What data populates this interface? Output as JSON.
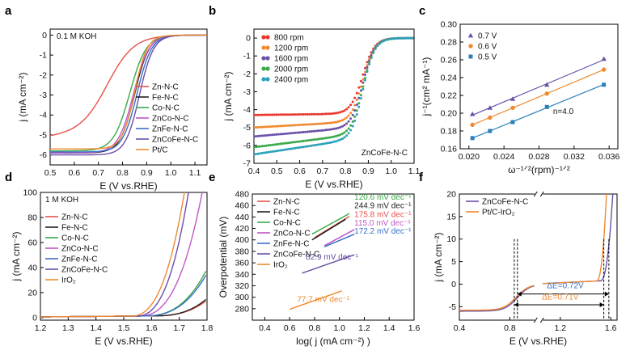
{
  "chart_data": [
    {
      "id": "a",
      "type": "line",
      "label": "a",
      "annotation": "0.1 M KOH",
      "xlabel": "E (V vs.RHE)",
      "ylabel": "j (mA cm⁻²)",
      "xlim": [
        0.5,
        1.15
      ],
      "ylim": [
        -6.5,
        0.3
      ],
      "xticks": [
        "0.5",
        "0.6",
        "0.7",
        "0.8",
        "0.9",
        "1.0",
        "1.1"
      ],
      "xtick_values": [
        0.5,
        0.6,
        0.7,
        0.8,
        0.9,
        1.0,
        1.1
      ],
      "yticks": [
        "0",
        "-1",
        "-2",
        "-3",
        "-4",
        "-5",
        "-6"
      ],
      "ytick_values": [
        0,
        -1,
        -2,
        -3,
        -4,
        -5,
        -6
      ],
      "series": [
        {
          "name": "Zn-N-C",
          "color": "#e8504a",
          "jl": -5.1,
          "e_half": 0.74,
          "slope": 0.055,
          "e_start": 0.5
        },
        {
          "name": "Fe-N-C",
          "color": "#222222",
          "jl": -5.9,
          "e_half": 0.85,
          "slope": 0.03,
          "e_start": 0.5
        },
        {
          "name": "Co-N-C",
          "color": "#3aa84a",
          "jl": -5.8,
          "e_half": 0.83,
          "slope": 0.034,
          "e_start": 0.5
        },
        {
          "name": "ZnCo-N-C",
          "color": "#c057c8",
          "jl": -5.9,
          "e_half": 0.845,
          "slope": 0.032,
          "e_start": 0.5
        },
        {
          "name": "ZnFe-N-C",
          "color": "#3a6fc8",
          "jl": -5.85,
          "e_half": 0.86,
          "slope": 0.03,
          "e_start": 0.5
        },
        {
          "name": "ZnCoFe-N-C",
          "color": "#6a4fa8",
          "jl": -6.0,
          "e_half": 0.87,
          "slope": 0.029,
          "e_start": 0.5
        },
        {
          "name": "Pt/C",
          "color": "#f08a30",
          "jl": -5.7,
          "e_half": 0.85,
          "slope": 0.026,
          "e_start": 0.5
        }
      ]
    },
    {
      "id": "b",
      "type": "scatter",
      "label": "b",
      "annotation": "ZnCoFe-N-C",
      "xlabel": "E (V vs.RHE)",
      "ylabel": "j (mA cm⁻²)",
      "xlim": [
        0.4,
        1.1
      ],
      "ylim": [
        -7,
        0.5
      ],
      "xticks": [
        "0.4",
        "0.5",
        "0.6",
        "0.7",
        "0.8",
        "0.9",
        "1.0",
        "1.1"
      ],
      "xtick_values": [
        0.4,
        0.5,
        0.6,
        0.7,
        0.8,
        0.9,
        1.0,
        1.1
      ],
      "yticks": [
        "0",
        "-1",
        "-2",
        "-3",
        "-4",
        "-5",
        "-6",
        "-7"
      ],
      "ytick_values": [
        0,
        -1,
        -2,
        -3,
        -4,
        -5,
        -6,
        -7
      ],
      "series": [
        {
          "name": "800 rpm",
          "color": "#e8372e",
          "jl": -4.3
        },
        {
          "name": "1200 rpm",
          "color": "#f08a30",
          "jl": -5.0
        },
        {
          "name": "1600 rpm",
          "color": "#6a4fa8",
          "jl": -5.5
        },
        {
          "name": "2000 rpm",
          "color": "#3aa84a",
          "jl": -6.1
        },
        {
          "name": "2400 rpm",
          "color": "#2aa0b8",
          "jl": -6.5
        }
      ]
    },
    {
      "id": "c",
      "type": "scatter",
      "label": "c",
      "annotation": "n=4.0",
      "xlabel": "ω⁻¹ᐟ²(rpm)⁻¹ᐟ²",
      "ylabel": "j⁻¹(cm² mA⁻¹)",
      "xlim": [
        0.019,
        0.037
      ],
      "ylim": [
        0.16,
        0.3
      ],
      "xticks": [
        "0.020",
        "0.024",
        "0.028",
        "0.032",
        "0.036"
      ],
      "xtick_values": [
        0.02,
        0.024,
        0.028,
        0.032,
        0.036
      ],
      "yticks": [
        "0.16",
        "0.18",
        "0.20",
        "0.22",
        "0.24",
        "0.26",
        "0.28",
        "0.30"
      ],
      "ytick_values": [
        0.16,
        0.18,
        0.2,
        0.22,
        0.24,
        0.26,
        0.28,
        0.3
      ],
      "x": [
        0.0204,
        0.0224,
        0.025,
        0.0289,
        0.0354
      ],
      "series": [
        {
          "name": "0.7 V",
          "color": "#6a4fa8",
          "marker": "triangle",
          "values": [
            0.199,
            0.206,
            0.216,
            0.232,
            0.261
          ]
        },
        {
          "name": "0.6 V",
          "color": "#f08a30",
          "marker": "circle",
          "values": [
            0.187,
            0.195,
            0.206,
            0.222,
            0.249
          ]
        },
        {
          "name": "0.5 V",
          "color": "#2a80b8",
          "marker": "square",
          "values": [
            0.172,
            0.18,
            0.19,
            0.207,
            0.232
          ]
        }
      ]
    },
    {
      "id": "d",
      "type": "line",
      "label": "d",
      "annotation": "1 M KOH",
      "xlabel": "E (V vs.RHE)",
      "ylabel": "j (mA cm⁻²)",
      "xlim": [
        1.2,
        1.8
      ],
      "ylim": [
        -2,
        100
      ],
      "xticks": [
        "1.2",
        "1.3",
        "1.4",
        "1.5",
        "1.6",
        "1.7",
        "1.8"
      ],
      "xtick_values": [
        1.2,
        1.3,
        1.4,
        1.5,
        1.6,
        1.7,
        1.8
      ],
      "yticks": [
        "0",
        "20",
        "40",
        "60",
        "80",
        "100"
      ],
      "ytick_values": [
        0,
        20,
        40,
        60,
        80,
        100
      ],
      "series": [
        {
          "name": "Zn-N-C",
          "color": "#e8504a",
          "onset": 1.62,
          "k": 180
        },
        {
          "name": "Fe-N-C",
          "color": "#222222",
          "onset": 1.62,
          "k": 200
        },
        {
          "name": "Co-N-C",
          "color": "#3aa84a",
          "onset": 1.58,
          "k": 330
        },
        {
          "name": "ZnCo-N-C",
          "color": "#c057c8",
          "onset": 1.56,
          "k": 850
        },
        {
          "name": "ZnFe-N-C",
          "color": "#3a6fc8",
          "onset": 1.58,
          "k": 300
        },
        {
          "name": "ZnCoFe-N-C",
          "color": "#6a4fa8",
          "onset": 1.55,
          "k": 1400
        },
        {
          "name": "IrO₂",
          "color": "#f08a30",
          "onset": 1.53,
          "k": 1300
        }
      ]
    },
    {
      "id": "e",
      "type": "line",
      "label": "e",
      "xlabel": "log( j (mA cm⁻²) )",
      "ylabel": "Overpotential (mV)",
      "xlim": [
        0.3,
        1.6
      ],
      "ylim": [
        260,
        480
      ],
      "xticks": [
        "0.4",
        "0.6",
        "0.8",
        "1.0",
        "1.2",
        "1.4",
        "1.6"
      ],
      "xtick_values": [
        0.4,
        0.6,
        0.8,
        1.0,
        1.2,
        1.4,
        1.6
      ],
      "yticks": [
        "280",
        "300",
        "320",
        "340",
        "360",
        "380",
        "400",
        "420",
        "440",
        "460",
        "480"
      ],
      "ytick_values": [
        280,
        300,
        320,
        340,
        360,
        380,
        400,
        420,
        440,
        460,
        480
      ],
      "series": [
        {
          "name": "Zn-N-C",
          "color": "#e8504a",
          "tafel": "175.8 mV dec⁻¹",
          "x": [
            0.8,
            1.08
          ],
          "y": [
            404,
            441
          ]
        },
        {
          "name": "Fe-N-C",
          "color": "#222222",
          "tafel": "244.9 mV dec⁻¹",
          "x": [
            0.78,
            1.05
          ],
          "y": [
            400,
            436
          ]
        },
        {
          "name": "Co-N-C",
          "color": "#3aa84a",
          "tafel": "120.6 mV dec⁻¹",
          "x": [
            0.78,
            1.08
          ],
          "y": [
            410,
            446
          ]
        },
        {
          "name": "ZnCo-N-C",
          "color": "#c057c8",
          "tafel": "115.0 mV dec⁻¹",
          "x": [
            0.88,
            1.12
          ],
          "y": [
            390,
            418
          ]
        },
        {
          "name": "ZnFe-N-C",
          "color": "#3a6fc8",
          "tafel": "172.2 mV dec⁻¹",
          "x": [
            0.88,
            1.12
          ],
          "y": [
            388,
            410
          ]
        },
        {
          "name": "ZnCoFe-N-C",
          "color": "#6a4fa8",
          "tafel": "82.9 mV dec⁻¹",
          "x": [
            0.7,
            1.12
          ],
          "y": [
            342,
            374
          ]
        },
        {
          "name": "IrO₂",
          "color": "#f08a30",
          "tafel": "77.7 mV dec⁻¹",
          "x": [
            0.6,
            1.02
          ],
          "y": [
            279,
            311
          ]
        }
      ]
    },
    {
      "id": "f",
      "type": "line",
      "label": "f",
      "xlabel": "E (V vs.RHE)",
      "ylabel": "j (mA cm⁻²)",
      "xlim": [
        0.4,
        1.65
      ],
      "ylim": [
        -8,
        20
      ],
      "xticks": [
        "0.4",
        "0.8",
        "1.2",
        "1.6"
      ],
      "xtick_values": [
        0.4,
        0.8,
        1.2,
        1.6
      ],
      "yticks": [
        "-5",
        "0",
        "5",
        "10",
        "15",
        "20"
      ],
      "ytick_values": [
        -5,
        0,
        5,
        10,
        15,
        20
      ],
      "series": [
        {
          "name": "ZnCoFe-N-C",
          "color": "#6a4fa8"
        },
        {
          "name": "Pt/C-IrO₂",
          "color": "#f08a30"
        }
      ],
      "annotations": [
        {
          "text": "ΔE=0.72V",
          "color": "#3a6fc8"
        },
        {
          "text": "ΔE=0.71V",
          "color": "#f08a30"
        }
      ]
    }
  ]
}
